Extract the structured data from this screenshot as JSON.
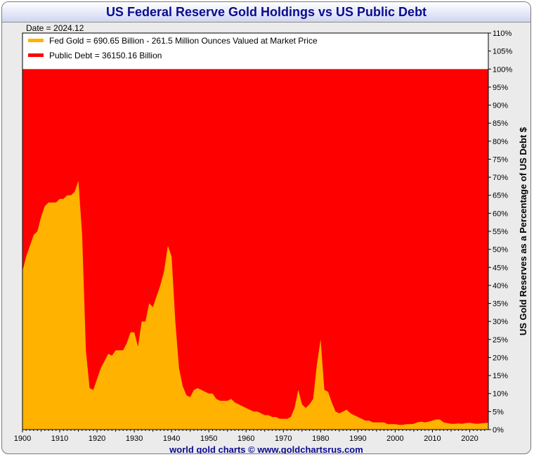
{
  "title": "US Federal Reserve Gold Holdings vs US Public Debt",
  "footer": "world gold charts © www.goldchartsrus.com",
  "chart_data": {
    "type": "area",
    "title": "US Federal Reserve Gold Holdings vs US Public Debt",
    "date_label": "Date = 2024.12",
    "xlabel": "",
    "ylabel": "US Gold Reserves as a Percentage of US Debt $",
    "xlim": [
      1900,
      2025
    ],
    "ylim": [
      0,
      110
    ],
    "x_ticks": [
      1900,
      1910,
      1920,
      1930,
      1940,
      1950,
      1960,
      1970,
      1980,
      1990,
      2000,
      2010,
      2020
    ],
    "y_ticks": [
      0,
      5,
      10,
      15,
      20,
      25,
      30,
      35,
      40,
      45,
      50,
      55,
      60,
      65,
      70,
      75,
      80,
      85,
      90,
      95,
      100,
      105,
      110
    ],
    "y_tick_suffix": "%",
    "grid": false,
    "legend_position": "top-left",
    "series": [
      {
        "name": "Fed Gold = 690.65 Billion - 261.5 Million Ounces Valued at Market Price",
        "color": "#ffb300",
        "x": [
          1900,
          1901,
          1902,
          1903,
          1904,
          1905,
          1906,
          1907,
          1908,
          1909,
          1910,
          1911,
          1912,
          1913,
          1914,
          1915,
          1916,
          1917,
          1918,
          1919,
          1920,
          1921,
          1922,
          1923,
          1924,
          1925,
          1926,
          1927,
          1928,
          1929,
          1930,
          1931,
          1932,
          1933,
          1934,
          1935,
          1936,
          1937,
          1938,
          1939,
          1940,
          1941,
          1942,
          1943,
          1944,
          1945,
          1946,
          1947,
          1948,
          1949,
          1950,
          1951,
          1952,
          1953,
          1954,
          1955,
          1956,
          1957,
          1958,
          1959,
          1960,
          1961,
          1962,
          1963,
          1964,
          1965,
          1966,
          1967,
          1968,
          1969,
          1970,
          1971,
          1972,
          1973,
          1974,
          1975,
          1976,
          1977,
          1978,
          1979,
          1980,
          1981,
          1982,
          1983,
          1984,
          1985,
          1986,
          1987,
          1988,
          1989,
          1990,
          1991,
          1992,
          1993,
          1994,
          1995,
          1996,
          1997,
          1998,
          1999,
          2000,
          2001,
          2002,
          2003,
          2004,
          2005,
          2006,
          2007,
          2008,
          2009,
          2010,
          2011,
          2012,
          2013,
          2014,
          2015,
          2016,
          2017,
          2018,
          2019,
          2020,
          2021,
          2022,
          2023,
          2024.9
        ],
        "values": [
          44,
          48,
          51,
          54,
          55,
          59,
          62,
          63,
          63,
          63,
          64,
          64,
          65,
          65,
          66,
          69,
          54,
          22,
          11.5,
          11,
          14,
          17,
          19,
          21,
          20.5,
          22,
          22,
          22,
          24,
          27,
          27,
          23,
          30,
          30,
          35,
          34,
          37,
          40,
          44,
          51,
          48,
          30,
          17,
          12,
          9.5,
          9,
          11,
          11.5,
          11,
          10.5,
          10,
          10,
          8.5,
          8,
          8,
          8,
          8.5,
          7.5,
          7,
          6.5,
          6,
          5.5,
          5,
          5,
          4.5,
          4,
          4,
          3.5,
          3.5,
          3,
          3,
          3,
          3.5,
          6,
          11,
          7,
          6,
          7,
          8.5,
          18,
          25,
          11,
          10.5,
          7.5,
          5,
          4.5,
          5,
          5.5,
          4.5,
          4,
          3.5,
          3,
          2.5,
          2.5,
          2,
          2,
          2,
          2,
          1.5,
          1.5,
          1.5,
          1.3,
          1.3,
          1.5,
          1.5,
          1.6,
          2,
          2.2,
          2,
          2.2,
          2.5,
          2.8,
          2.8,
          2,
          1.8,
          1.6,
          1.6,
          1.7,
          1.6,
          1.8,
          1.9,
          1.7,
          1.6,
          1.7,
          1.9
        ]
      },
      {
        "name": "Public Debt = 36150.16 Billion",
        "color": "#ff0000",
        "values_constant": 100
      }
    ]
  }
}
